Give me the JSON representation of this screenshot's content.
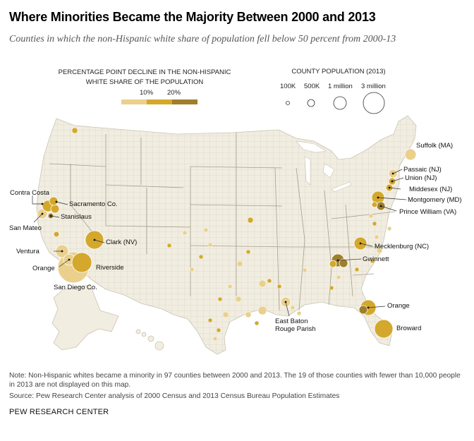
{
  "title": "Where Minorities Became the Majority Between 2000 and 2013",
  "subtitle": "Counties in which the non-Hispanic white share of population fell below 50 percent from 2000-13",
  "legend_decline": {
    "title_line1": "PERCENTAGE POINT DECLINE IN THE NON-HISPANIC",
    "title_line2": "WHITE SHARE OF THE POPULATION",
    "tick1": "10%",
    "tick2": "20%",
    "colors": [
      "#ead08c",
      "#d3a82c",
      "#a07f2a"
    ]
  },
  "legend_population": {
    "title": "COUNTY POPULATION (2013)",
    "labels": [
      "100K",
      "500K",
      "1 million",
      "3 million"
    ]
  },
  "chart_data": {
    "type": "map",
    "title": "Where Minorities Became the Majority Between 2000 and 2013",
    "counties": [
      {
        "name": "Contra Costa"
      },
      {
        "name": "Sacramento Co."
      },
      {
        "name": "Stanislaus"
      },
      {
        "name": "San Mateo"
      },
      {
        "name": "Ventura"
      },
      {
        "name": "Orange"
      },
      {
        "name": "Riverside"
      },
      {
        "name": "San Diego Co."
      },
      {
        "name": "Clark (NV)"
      },
      {
        "name": "Suffolk (MA)"
      },
      {
        "name": "Passaic (NJ)"
      },
      {
        "name": "Union (NJ)"
      },
      {
        "name": "Middesex (NJ)"
      },
      {
        "name": "Montgomery (MD)"
      },
      {
        "name": "Prince William (VA)"
      },
      {
        "name": "Mecklenburg (NC)"
      },
      {
        "name": "Gwinnett"
      },
      {
        "name": "Orange",
        "state": "FL"
      },
      {
        "name": "Broward"
      },
      {
        "name": "East Baton Rouge Parish"
      }
    ]
  },
  "labels": {
    "contra_costa": "Contra Costa",
    "sacramento": "Sacramento Co.",
    "stanislaus": "Stanislaus",
    "san_mateo": "San Mateo",
    "ventura": "Ventura",
    "orange_ca": "Orange",
    "riverside": "Riverside",
    "san_diego": "San Diego Co.",
    "clark": "Clark (NV)",
    "suffolk": "Suffolk (MA)",
    "passaic": "Passaic (NJ)",
    "union": "Union (NJ)",
    "middlesex": "Middesex (NJ)",
    "montgomery": "Montgomery (MD)",
    "prince_william": "Prince William (VA)",
    "mecklenburg": "Mecklenburg (NC)",
    "gwinnett": "Gwinnett",
    "orange_fl": "Orange",
    "broward": "Broward",
    "ebr_line1": "East Baton",
    "ebr_line2": "Rouge Parish"
  },
  "note": "Note: Non-Hispanic whites became a minority in 97 counties between 2000 and 2013. The 19 of those counties with fewer than 10,000 people in 2013 are not displayed on this map.",
  "source": "Source: Pew Research Center analysis of 2000 Census and 2013 Census Bureau Population Estimates",
  "footer": "PEW RESEARCH CENTER"
}
